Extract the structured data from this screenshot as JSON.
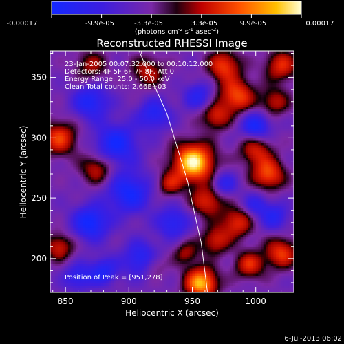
{
  "colorbar": {
    "ticks": [
      "-0.00017",
      "-9.9e-05",
      "-3.3e-05",
      "3.3e-05",
      "9.9e-05",
      "0.00017"
    ],
    "units_prefix": "(photons cm",
    "units_sup1": "-2",
    "units_mid": " s",
    "units_sup2": "-1",
    "units_after": " asec",
    "units_sup3": "-2",
    "units_end": ")"
  },
  "annotations": {
    "line1": "23-Jan-2005 00:07:32.000 to 00:10:12.000",
    "line2": "Detectors: 4F 5F 6F 7F 8F, Att 0",
    "line3": "Energy Range: 25.0 - 50.0 keV",
    "line4": "Clean     Total counts: 2.66E+03",
    "peak": "Position of Peak = [951,278]"
  },
  "footer": {
    "date": "6-Jul-2013 06:02"
  },
  "chart_data": {
    "type": "heatmap",
    "title": "Reconstructed RHESSI Image",
    "xlabel": "Heliocentric X (arcsec)",
    "ylabel": "Heliocentric Y (arcsec)",
    "xlim": [
      838,
      1030
    ],
    "ylim": [
      172,
      372
    ],
    "xticks": [
      850,
      900,
      950,
      1000
    ],
    "yticks": [
      200,
      250,
      300,
      350
    ],
    "colorbar_range": [
      -0.00017,
      0.00017
    ],
    "peak": {
      "x": 951,
      "y": 278
    },
    "limb": [
      [
        908,
        372
      ],
      [
        930,
        320
      ],
      [
        946,
        265
      ],
      [
        957,
        213
      ],
      [
        962,
        172
      ]
    ],
    "blobs": [
      {
        "x": 951,
        "y": 280,
        "a": 1.0,
        "s": 11
      },
      {
        "x": 957,
        "y": 180,
        "a": 0.85,
        "s": 9
      },
      {
        "x": 845,
        "y": 210,
        "a": 0.45,
        "s": 8
      },
      {
        "x": 845,
        "y": 300,
        "a": 0.55,
        "s": 10
      },
      {
        "x": 875,
        "y": 275,
        "a": 0.45,
        "s": 9
      },
      {
        "x": 932,
        "y": 262,
        "a": 0.4,
        "s": 7
      },
      {
        "x": 968,
        "y": 318,
        "a": 0.45,
        "s": 8
      },
      {
        "x": 962,
        "y": 248,
        "a": 0.5,
        "s": 9
      },
      {
        "x": 985,
        "y": 335,
        "a": 0.6,
        "s": 10
      },
      {
        "x": 1000,
        "y": 290,
        "a": 0.45,
        "s": 9
      },
      {
        "x": 985,
        "y": 230,
        "a": 0.5,
        "s": 9
      },
      {
        "x": 1010,
        "y": 270,
        "a": 0.6,
        "s": 9
      },
      {
        "x": 1020,
        "y": 205,
        "a": 0.55,
        "s": 9
      },
      {
        "x": 995,
        "y": 195,
        "a": 0.5,
        "s": 8
      },
      {
        "x": 968,
        "y": 215,
        "a": 0.45,
        "s": 8
      },
      {
        "x": 945,
        "y": 205,
        "a": 0.35,
        "s": 7
      },
      {
        "x": 975,
        "y": 360,
        "a": 0.55,
        "s": 9
      },
      {
        "x": 1020,
        "y": 360,
        "a": 0.5,
        "s": 9
      },
      {
        "x": 915,
        "y": 355,
        "a": 0.4,
        "s": 9
      },
      {
        "x": 870,
        "y": 360,
        "a": 0.35,
        "s": 9
      },
      {
        "x": 920,
        "y": 195,
        "a": 0.3,
        "s": 7
      },
      {
        "x": 1015,
        "y": 330,
        "a": 0.4,
        "s": 8
      },
      {
        "x": 900,
        "y": 255,
        "a": -0.55,
        "s": 12
      },
      {
        "x": 890,
        "y": 295,
        "a": -0.55,
        "s": 12
      },
      {
        "x": 870,
        "y": 230,
        "a": -0.6,
        "s": 10
      },
      {
        "x": 870,
        "y": 330,
        "a": -0.5,
        "s": 10
      },
      {
        "x": 920,
        "y": 320,
        "a": -0.45,
        "s": 9
      },
      {
        "x": 910,
        "y": 200,
        "a": -0.5,
        "s": 10
      },
      {
        "x": 935,
        "y": 230,
        "a": -0.45,
        "s": 9
      },
      {
        "x": 1000,
        "y": 310,
        "a": -0.55,
        "s": 8
      },
      {
        "x": 1015,
        "y": 235,
        "a": -0.4,
        "s": 8
      },
      {
        "x": 975,
        "y": 262,
        "a": -0.4,
        "s": 7
      },
      {
        "x": 955,
        "y": 335,
        "a": -0.4,
        "s": 8
      },
      {
        "x": 860,
        "y": 185,
        "a": -0.4,
        "s": 8
      },
      {
        "x": 880,
        "y": 190,
        "a": -0.45,
        "s": 8
      },
      {
        "x": 1000,
        "y": 245,
        "a": -0.35,
        "s": 7
      }
    ]
  }
}
